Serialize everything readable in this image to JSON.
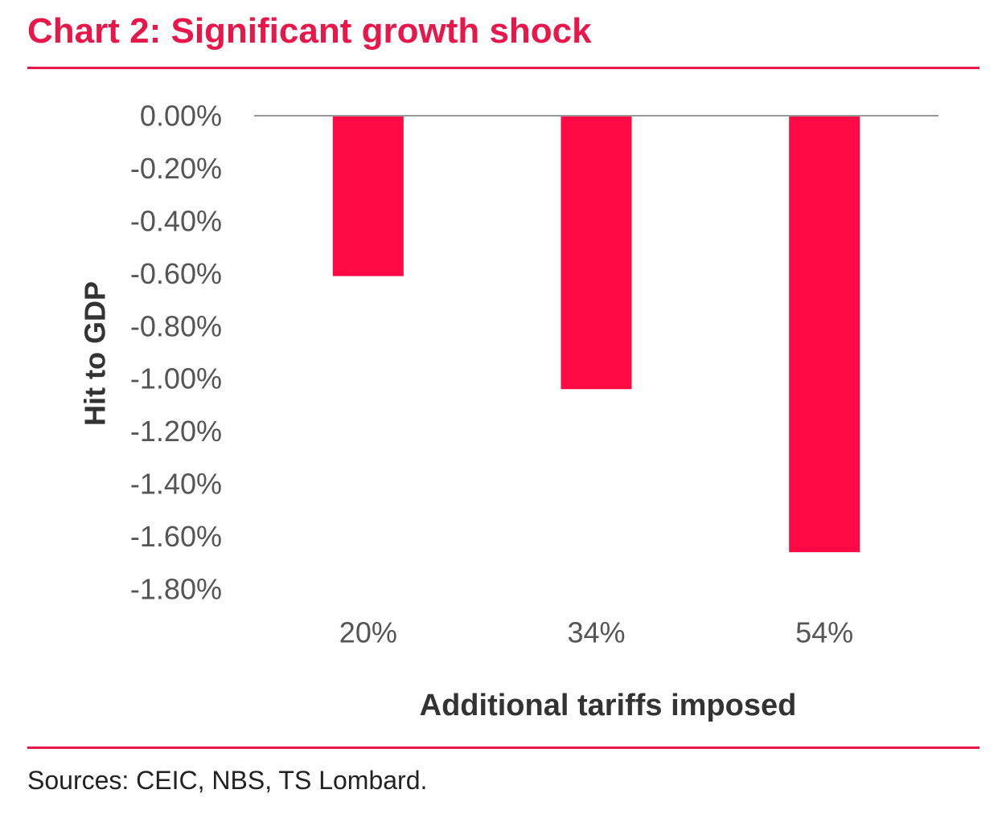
{
  "title": "Chart 2: Significant growth shock",
  "source": "Sources: CEIC, NBS, TS Lombard.",
  "colors": {
    "accent": "#e8174a",
    "bar": "#ff0a45",
    "axis": "#999999",
    "tick_text": "#555555",
    "label_text": "#333333"
  },
  "chart_data": {
    "type": "bar",
    "categories": [
      "20%",
      "34%",
      "54%"
    ],
    "values": [
      -0.61,
      -1.04,
      -1.66
    ],
    "xlabel": "Additional tariffs imposed",
    "ylabel": "Hit to GDP",
    "ylim": [
      -1.8,
      0
    ],
    "yticks": [
      "0.00%",
      "-0.20%",
      "-0.40%",
      "-0.60%",
      "-0.80%",
      "-1.00%",
      "-1.20%",
      "-1.40%",
      "-1.60%",
      "-1.80%"
    ],
    "grid": false,
    "legend": false
  }
}
